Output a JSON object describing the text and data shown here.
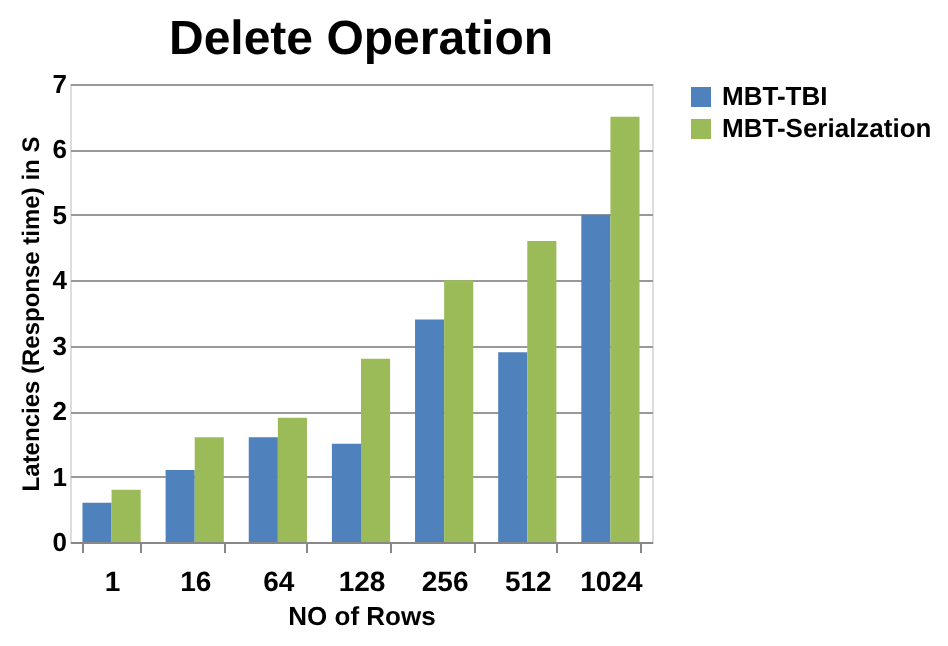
{
  "chart_data": {
    "type": "bar",
    "title": "Delete Operation",
    "xlabel": "NO of Rows",
    "ylabel": "Latencies (Response time) in S",
    "categories": [
      "1",
      "16",
      "64",
      "128",
      "256",
      "512",
      "1024"
    ],
    "series": [
      {
        "name": "MBT-TBI",
        "color": "#4f81bd",
        "values": [
          0.6,
          1.1,
          1.6,
          1.5,
          3.4,
          2.9,
          5.0
        ]
      },
      {
        "name": "MBT-Serialzation",
        "color": "#9bbb59",
        "values": [
          0.8,
          1.6,
          1.9,
          2.8,
          4.0,
          4.6,
          6.5
        ]
      }
    ],
    "ylim": [
      0,
      7
    ],
    "yticks": [
      0,
      1,
      2,
      3,
      4,
      5,
      6,
      7
    ],
    "grid": "y",
    "legend": "right"
  }
}
